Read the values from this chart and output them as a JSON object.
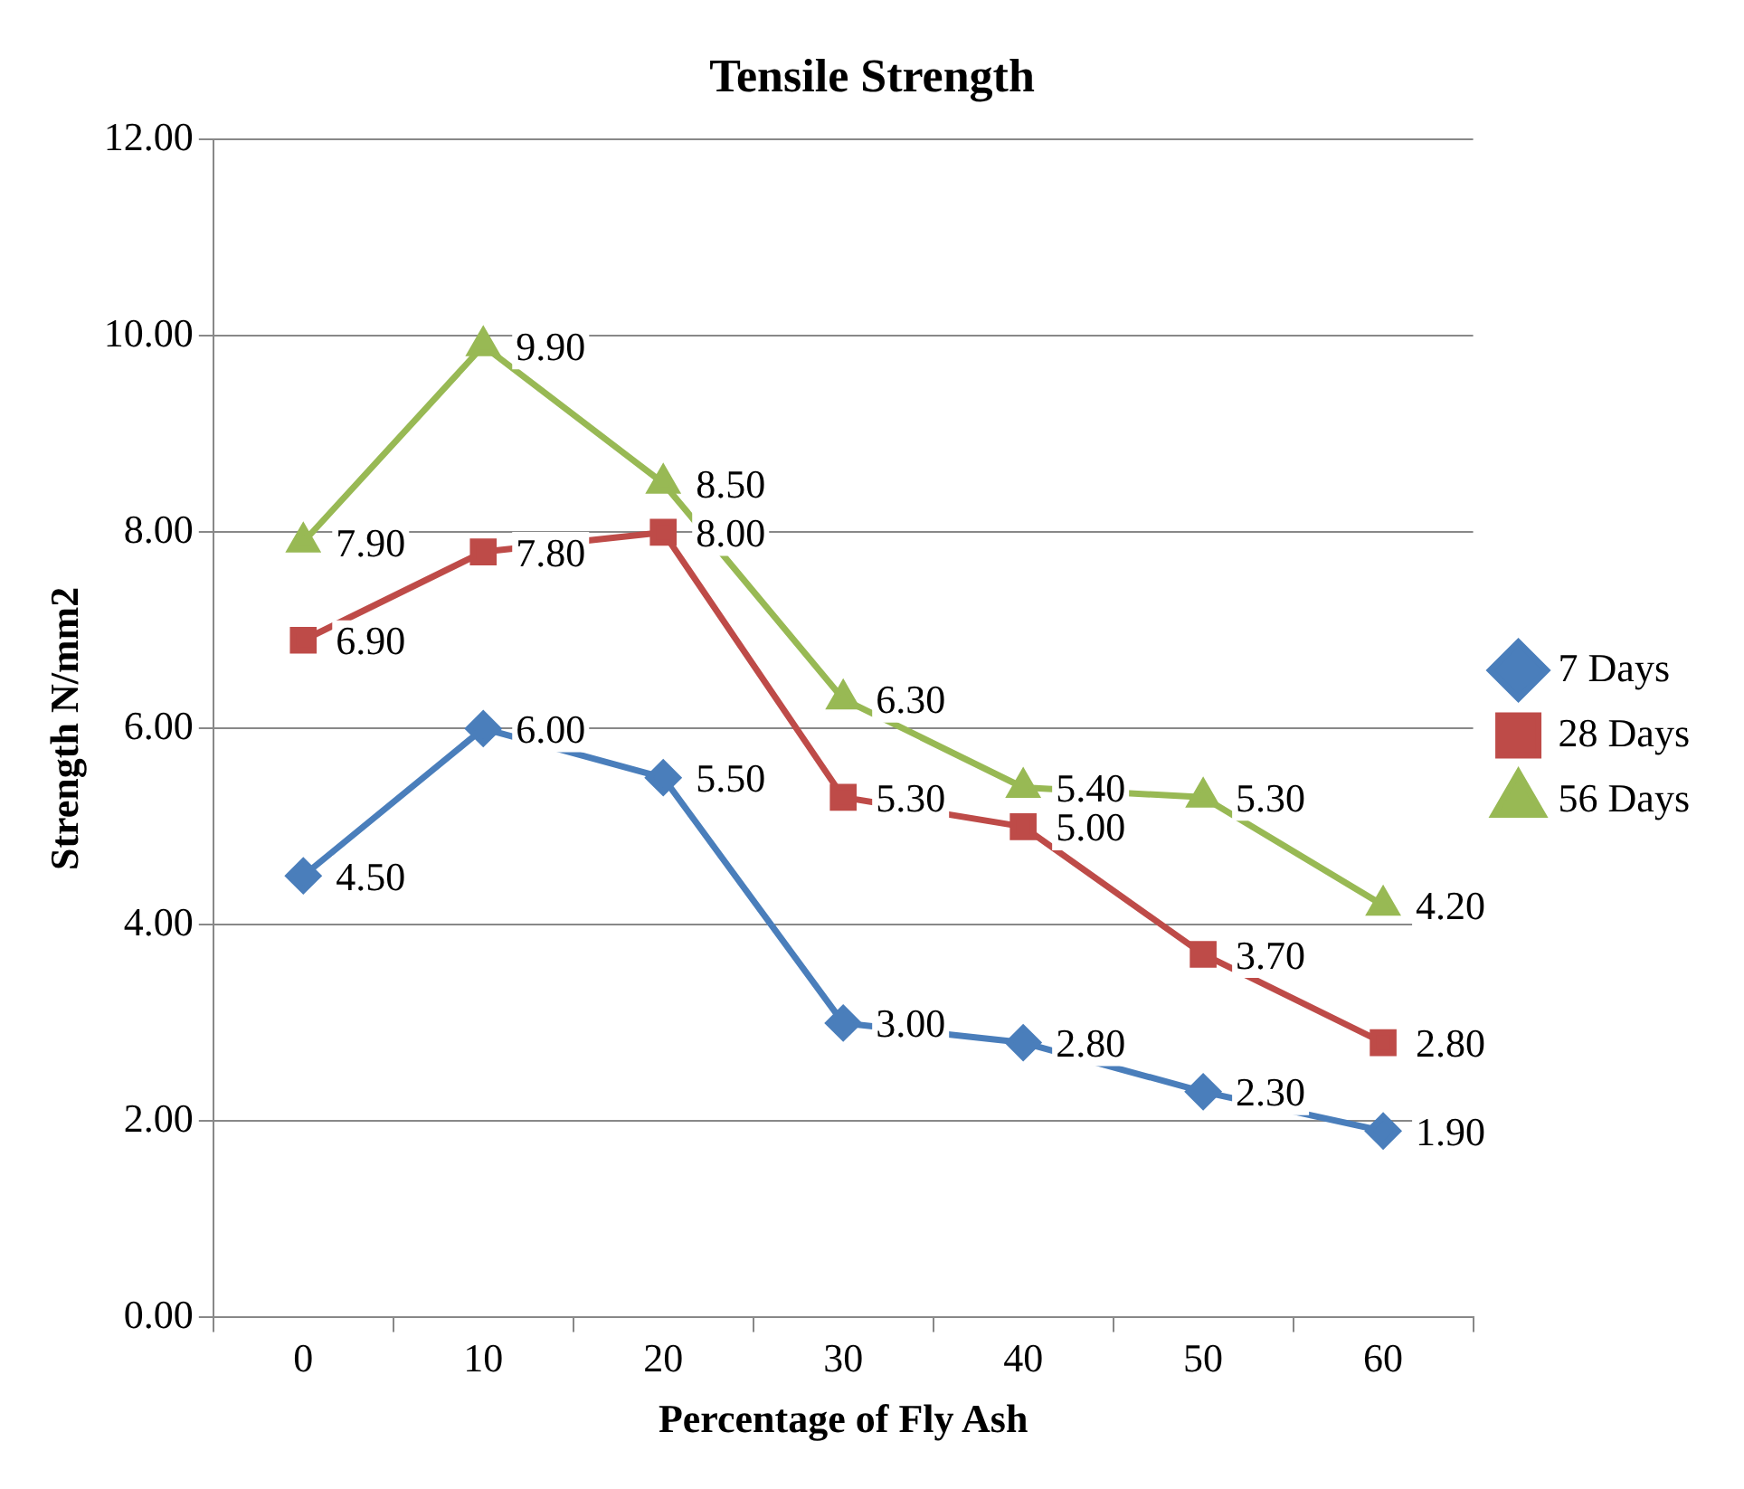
{
  "chart_data": {
    "type": "line",
    "title": "Tensile Strength",
    "xlabel": "Percentage of Fly Ash",
    "ylabel": "Strength N/mm2",
    "categories": [
      "0",
      "10",
      "20",
      "30",
      "40",
      "50",
      "60"
    ],
    "series": [
      {
        "name": "7 Days",
        "color": "#4a7ebb",
        "marker": "diamond",
        "values": [
          4.5,
          6.0,
          5.5,
          3.0,
          2.8,
          2.3,
          1.9
        ],
        "value_labels": [
          "4.50",
          "6.00",
          "5.50",
          "3.00",
          "2.80",
          "2.30",
          "1.90"
        ]
      },
      {
        "name": "28 Days",
        "color": "#be4b48",
        "marker": "square",
        "values": [
          6.9,
          7.8,
          8.0,
          5.3,
          5.0,
          3.7,
          2.8
        ],
        "value_labels": [
          "6.90",
          "7.80",
          "8.00",
          "5.30",
          "5.00",
          "3.70",
          "2.80"
        ]
      },
      {
        "name": "56 Days",
        "color": "#98b954",
        "marker": "triangle",
        "values": [
          7.9,
          9.9,
          8.5,
          6.3,
          5.4,
          5.3,
          4.2
        ],
        "value_labels": [
          "7.90",
          "9.90",
          "8.50",
          "6.30",
          "5.40",
          "5.30",
          "4.20"
        ]
      }
    ],
    "ylim": [
      0,
      12
    ],
    "yticks": [
      {
        "value": 0,
        "label": "0.00"
      },
      {
        "value": 2,
        "label": "2.00"
      },
      {
        "value": 4,
        "label": "4.00"
      },
      {
        "value": 6,
        "label": "6.00"
      },
      {
        "value": 8,
        "label": "8.00"
      },
      {
        "value": 10,
        "label": "10.00"
      },
      {
        "value": 12,
        "label": "12.00"
      }
    ],
    "grid": "y",
    "legend": "right",
    "line_style": "solid"
  }
}
